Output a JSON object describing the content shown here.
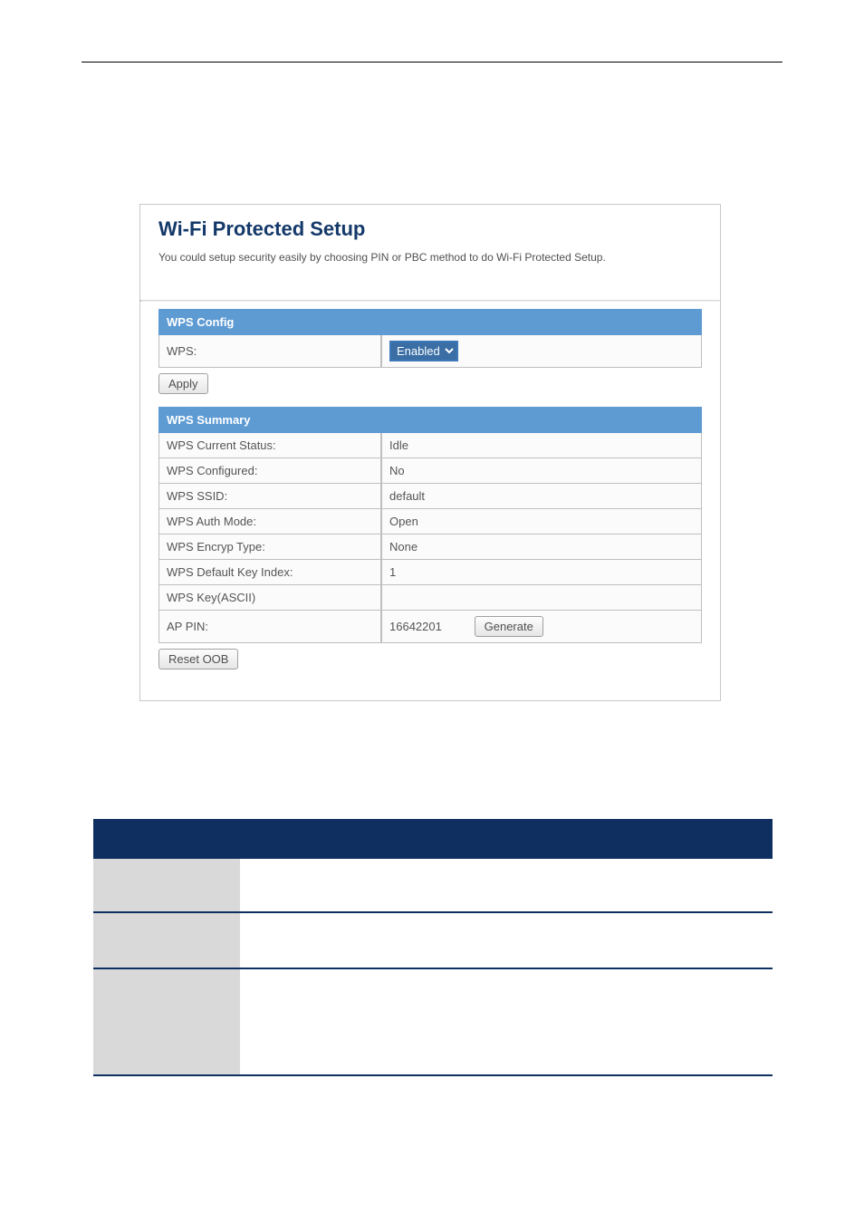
{
  "panel": {
    "title": "Wi-Fi Protected Setup",
    "description": "You could setup security easily by choosing PIN or PBC method to do Wi-Fi Protected Setup."
  },
  "wps_config": {
    "header": "WPS Config",
    "wps_label": "WPS:",
    "wps_value": "Enabled",
    "apply_label": "Apply"
  },
  "wps_summary": {
    "header": "WPS Summary",
    "rows": {
      "current_status": {
        "label": "WPS Current Status:",
        "value": "Idle"
      },
      "configured": {
        "label": "WPS Configured:",
        "value": "No"
      },
      "ssid": {
        "label": "WPS SSID:",
        "value": "default"
      },
      "auth_mode": {
        "label": "WPS Auth Mode:",
        "value": "Open"
      },
      "encryp_type": {
        "label": "WPS Encryp Type:",
        "value": "None"
      },
      "default_key": {
        "label": "WPS Default Key Index:",
        "value": "1"
      },
      "key_ascii": {
        "label": "WPS Key(ASCII)",
        "value": ""
      },
      "ap_pin": {
        "label": "AP PIN:",
        "value": "16642201",
        "generate_label": "Generate"
      }
    },
    "reset_label": "Reset OOB"
  },
  "def_table": {
    "col_param_width": 160
  },
  "colors": {
    "section_header_bg": "#5e9bd3",
    "def_header_bg": "#0f2f60",
    "def_param_bg": "#d9d9d9",
    "title_color": "#14396a"
  }
}
